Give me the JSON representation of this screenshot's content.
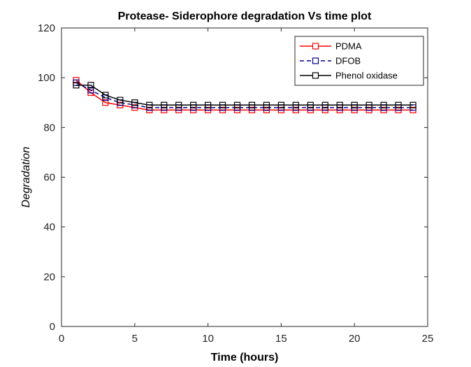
{
  "chart_data": {
    "type": "line",
    "title": "Protease- Siderophore degradation Vs time plot",
    "xlabel": "Time (hours)",
    "ylabel": "Degradation",
    "xlim": [
      0,
      25
    ],
    "ylim": [
      0,
      120
    ],
    "xticks": [
      0,
      5,
      10,
      15,
      20,
      25
    ],
    "yticks": [
      0,
      20,
      40,
      60,
      80,
      100,
      120
    ],
    "grid": false,
    "legend_position": "top-right",
    "x": [
      1,
      2,
      3,
      4,
      5,
      6,
      7,
      8,
      9,
      10,
      11,
      12,
      13,
      14,
      15,
      16,
      17,
      18,
      19,
      20,
      21,
      22,
      23,
      24
    ],
    "series": [
      {
        "name": "PDMA",
        "color": "#ff0000",
        "line_style": "solid",
        "marker": "square",
        "values": [
          99,
          94,
          90,
          89,
          88,
          87,
          87,
          87,
          87,
          87,
          87,
          87,
          87,
          87,
          87,
          87,
          87,
          87,
          87,
          87,
          87,
          87,
          87,
          87
        ]
      },
      {
        "name": "DFOB",
        "color": "#00008b",
        "line_style": "dashed",
        "marker": "square",
        "values": [
          98,
          95,
          92,
          90,
          89,
          88,
          88,
          88,
          88,
          88,
          88,
          88,
          88,
          88,
          88,
          88,
          88,
          88,
          88,
          88,
          88,
          88,
          88,
          88
        ]
      },
      {
        "name": "Phenol oxidase",
        "color": "#000000",
        "line_style": "solid",
        "marker": "square",
        "values": [
          97,
          97,
          93,
          91,
          90,
          89,
          89,
          89,
          89,
          89,
          89,
          89,
          89,
          89,
          89,
          89,
          89,
          89,
          89,
          89,
          89,
          89,
          89,
          89
        ]
      }
    ]
  }
}
